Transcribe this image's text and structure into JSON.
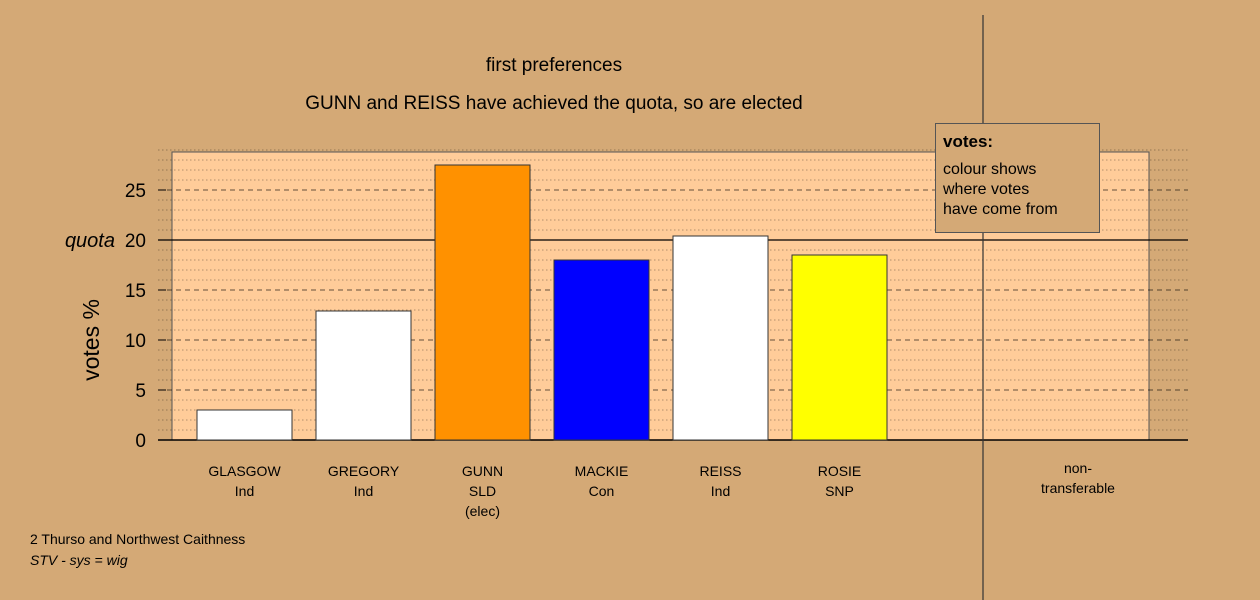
{
  "chart_data": {
    "type": "bar",
    "title": "first preferences",
    "subtitle": "GUNN and REISS have achieved the quota, so are elected",
    "ylabel": "votes %",
    "ylim": [
      0,
      29
    ],
    "yticks": [
      0,
      5,
      10,
      15,
      20,
      25
    ],
    "quota": 20,
    "quota_label": "quota",
    "categories": [
      {
        "name": "GLASGOW",
        "party": "Ind",
        "note": "",
        "value": 3.0,
        "color": "#ffffff"
      },
      {
        "name": "GREGORY",
        "party": "Ind",
        "note": "",
        "value": 12.9,
        "color": "#ffffff"
      },
      {
        "name": "GUNN",
        "party": "SLD",
        "note": "(elec)",
        "value": 27.5,
        "color": "#ff9100"
      },
      {
        "name": "MACKIE",
        "party": "Con",
        "note": "",
        "value": 18.0,
        "color": "#0000ff"
      },
      {
        "name": "REISS",
        "party": "Ind",
        "note": "",
        "value": 20.4,
        "color": "#ffffff"
      },
      {
        "name": "ROSIE",
        "party": "SNP",
        "note": "",
        "value": 18.5,
        "color": "#ffff00"
      }
    ],
    "nontransferable_label": [
      "non-",
      "transferable"
    ],
    "grid": true
  },
  "legend": {
    "title": "votes:",
    "lines": [
      "colour shows",
      "where votes",
      "have come from"
    ]
  },
  "footer": {
    "line1": "2 Thurso and Northwest Caithness",
    "line2": "STV - sys = wig"
  },
  "colors": {
    "background": "#d4a976",
    "plot_area": "#ffcc99"
  }
}
